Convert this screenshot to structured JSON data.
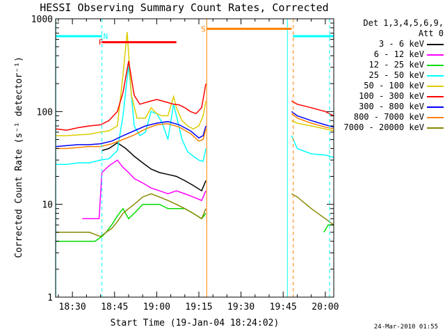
{
  "chart_data": {
    "type": "line",
    "title": "HESSI Observing Summary Count Rates, Corrected",
    "xlabel": "Start Time (19-Jan-04 18:24:02)",
    "ylabel": "Corrected Count Rate (s⁻¹ detector⁻¹)",
    "y_scale": "log",
    "ylim": [
      1,
      1000
    ],
    "xlim_min": [
      24.03,
      123.0
    ],
    "x_ticks": [
      {
        "min": 30,
        "label": "18:30"
      },
      {
        "min": 45,
        "label": "18:45"
      },
      {
        "min": 60,
        "label": "19:00"
      },
      {
        "min": 75,
        "label": "19:15"
      },
      {
        "min": 90,
        "label": "19:30"
      },
      {
        "min": 105,
        "label": "19:45"
      },
      {
        "min": 120,
        "label": "20:00"
      }
    ],
    "y_ticks": [
      {
        "value": 1,
        "label": "1"
      },
      {
        "value": 10,
        "label": "10"
      },
      {
        "value": 100,
        "label": "100"
      },
      {
        "value": 1000,
        "label": "1000"
      }
    ],
    "legend_title": [
      "Det 1,3,4,5,6,9,",
      "Att 0"
    ],
    "legend_placement": "right",
    "series": [
      {
        "name": "3 - 6 keV",
        "color": "#000000",
        "x": [
          40.5,
          43,
          46,
          49,
          52,
          55,
          58,
          61,
          64,
          67,
          70,
          73,
          76,
          77.5
        ],
        "y": [
          38,
          40,
          46,
          40,
          33,
          28,
          24,
          22,
          21,
          20,
          18,
          16,
          14,
          18
        ]
      },
      {
        "name": "6 - 12 keV",
        "color": "#ff00ff",
        "x": [
          33.5,
          36,
          39.5,
          40.5,
          43,
          46,
          48,
          50,
          52,
          55,
          58,
          61,
          64,
          67,
          70,
          73,
          76,
          77.5
        ],
        "y": [
          7,
          7,
          7,
          22,
          26,
          30,
          25,
          22,
          19,
          17,
          15,
          14,
          13,
          14,
          13,
          12,
          11,
          14
        ]
      },
      {
        "name": "12 - 25 keV",
        "color": "#00dd00",
        "x": [
          24.1,
          26,
          28,
          30,
          32,
          34,
          36,
          38,
          40.5,
          42,
          44,
          46,
          48,
          50,
          52,
          55,
          58,
          61,
          64,
          67,
          70,
          73,
          76,
          77.5,
          119.5,
          121,
          123
        ],
        "y": [
          4,
          4,
          4,
          4,
          4,
          4,
          4,
          4,
          4.5,
          5,
          6,
          7.5,
          9,
          7,
          8,
          10,
          10,
          10,
          9,
          9,
          9,
          8,
          7,
          8,
          5,
          6,
          6
        ]
      },
      {
        "name": "25 - 50 keV",
        "color": "#00ffff",
        "x": [
          24.1,
          28,
          32,
          36,
          40,
          43,
          46,
          48,
          50,
          52,
          54,
          56,
          58,
          60,
          62,
          64,
          66,
          67,
          69,
          71,
          73,
          75,
          76.5,
          77.5,
          108,
          110,
          115,
          120,
          123
        ],
        "y": [
          27,
          27,
          28,
          28,
          30,
          31,
          38,
          90,
          320,
          70,
          55,
          60,
          100,
          95,
          75,
          50,
          120,
          90,
          50,
          37,
          33,
          30,
          29,
          40,
          55,
          40,
          35,
          34,
          32
        ]
      },
      {
        "name": "50 - 100 keV",
        "color": "#ddcc00",
        "x": [
          24.1,
          28,
          32,
          36,
          40,
          43,
          46,
          48,
          49.5,
          51,
          53,
          56,
          58,
          60,
          62,
          64,
          66,
          67,
          69,
          71,
          73,
          75,
          76.5,
          77.5,
          108,
          110,
          115,
          120,
          123
        ],
        "y": [
          55,
          55,
          56,
          57,
          60,
          62,
          70,
          250,
          720,
          150,
          85,
          85,
          110,
          95,
          90,
          90,
          145,
          110,
          80,
          70,
          65,
          70,
          90,
          130,
          80,
          75,
          70,
          65,
          62
        ]
      },
      {
        "name": "100 - 300 keV",
        "color": "#ff0000",
        "x": [
          24.1,
          28,
          32,
          36,
          40,
          43,
          46,
          48,
          50,
          52,
          54,
          56,
          58,
          60,
          62,
          64,
          66,
          68,
          70,
          72,
          74,
          76,
          77.5,
          108,
          110,
          115,
          120,
          123
        ],
        "y": [
          65,
          63,
          67,
          70,
          72,
          80,
          100,
          160,
          350,
          150,
          120,
          125,
          130,
          135,
          130,
          125,
          120,
          118,
          110,
          100,
          95,
          110,
          200,
          130,
          120,
          110,
          100,
          90
        ]
      },
      {
        "name": "300 - 800 keV",
        "color": "#0000ff",
        "x": [
          24.1,
          28,
          32,
          36,
          40,
          44,
          48,
          52,
          56,
          60,
          64,
          68,
          72,
          75,
          76.5,
          77.5,
          108,
          110,
          115,
          120,
          123
        ],
        "y": [
          42,
          43,
          44,
          44,
          45,
          48,
          55,
          62,
          70,
          75,
          78,
          72,
          62,
          52,
          55,
          70,
          100,
          90,
          80,
          72,
          68
        ]
      },
      {
        "name": "800 - 7000 keV",
        "color": "#ff8000",
        "x": [
          24.1,
          28,
          32,
          36,
          40,
          44,
          48,
          52,
          56,
          60,
          64,
          68,
          72,
          75,
          76.5,
          77.5,
          108,
          110,
          115,
          120,
          123
        ],
        "y": [
          40,
          40,
          41,
          42,
          42,
          45,
          50,
          56,
          65,
          72,
          74,
          68,
          58,
          48,
          50,
          65,
          95,
          85,
          75,
          68,
          65
        ]
      },
      {
        "name": "7000 - 20000 keV",
        "color": "#888800",
        "x": [
          24.1,
          28,
          32,
          36,
          40,
          42,
          44,
          46,
          48,
          50,
          52,
          55,
          58,
          61,
          64,
          67,
          70,
          73,
          76,
          77.5,
          108,
          110,
          115,
          120,
          123
        ],
        "y": [
          5,
          5,
          5,
          5,
          4.5,
          5,
          5.5,
          6.5,
          8,
          9,
          10,
          12,
          13,
          12,
          11,
          10,
          9,
          8,
          7,
          9,
          13,
          12,
          9,
          7,
          6
        ]
      }
    ],
    "flags": [
      {
        "label": "N",
        "color": "#00ffff",
        "y": 650,
        "segments": [
          [
            24.1,
            40.5
          ],
          [
            108.5,
            123
          ]
        ],
        "label_at": 41
      },
      {
        "label": "F",
        "color": "#ff0000",
        "y": 560,
        "segments": [
          [
            40.5,
            67
          ]
        ],
        "label_at": 39.3
      },
      {
        "label": "S",
        "color": "#ff8000",
        "y": 780,
        "segments": [
          [
            77.8,
            108
          ]
        ],
        "label_at": 75.8
      }
    ],
    "vlines": [
      {
        "x": 24.1,
        "color": "#00ffff",
        "style": "solid"
      },
      {
        "x": 40.5,
        "color": "#00ffff",
        "style": "dashed"
      },
      {
        "x": 77.8,
        "color": "#ff8000",
        "style": "solid"
      },
      {
        "x": 106.5,
        "color": "#00ffff",
        "style": "solid"
      },
      {
        "x": 108.6,
        "color": "#ff8000",
        "style": "dashed"
      },
      {
        "x": 121.5,
        "color": "#00ffff",
        "style": "dashed"
      }
    ],
    "grid": false
  },
  "timestamp": "24-Mar-2010 01:55"
}
